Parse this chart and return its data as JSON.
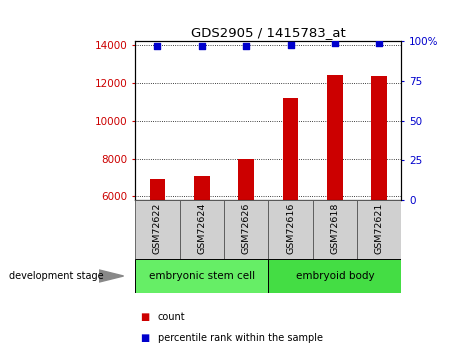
{
  "title": "GDS2905 / 1415783_at",
  "samples": [
    "GSM72622",
    "GSM72624",
    "GSM72626",
    "GSM72616",
    "GSM72618",
    "GSM72621"
  ],
  "counts": [
    6900,
    7050,
    8000,
    11200,
    12400,
    12350
  ],
  "percentile_ranks": [
    97,
    97,
    97,
    98,
    99,
    99
  ],
  "ylim_left": [
    5800,
    14200
  ],
  "ylim_right": [
    0,
    100
  ],
  "yticks_left": [
    6000,
    8000,
    10000,
    12000,
    14000
  ],
  "yticks_right": [
    0,
    25,
    50,
    75,
    100
  ],
  "ytick_labels_right": [
    "0",
    "25",
    "50",
    "75",
    "100%"
  ],
  "bar_color": "#cc0000",
  "dot_color": "#0000cc",
  "bar_bottom": 5800,
  "groups": [
    {
      "label": "embryonic stem cell",
      "start": 0,
      "end": 3,
      "color": "#66ee66"
    },
    {
      "label": "embryoid body",
      "start": 3,
      "end": 6,
      "color": "#44dd44"
    }
  ],
  "group_label_prefix": "development stage",
  "legend_items": [
    {
      "label": "count",
      "color": "#cc0000"
    },
    {
      "label": "percentile rank within the sample",
      "color": "#0000cc"
    }
  ],
  "background_color": "#ffffff",
  "tick_label_color_left": "#cc0000",
  "tick_label_color_right": "#0000cc",
  "grid_color": "#000000",
  "sample_box_color": "#d0d0d0"
}
